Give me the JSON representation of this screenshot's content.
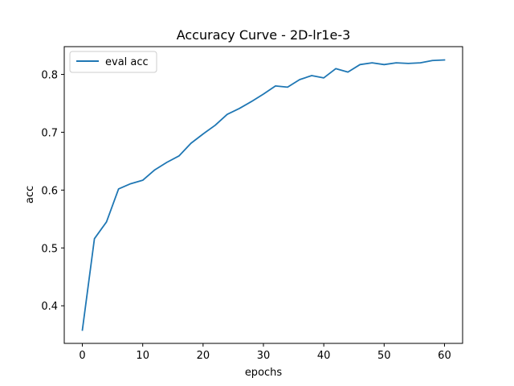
{
  "chart_data": {
    "type": "line",
    "title": "Accuracy Curve - 2D-lr1e-3",
    "xlabel": "epochs",
    "ylabel": "acc",
    "xlim": [
      -3,
      63
    ],
    "ylim": [
      0.335,
      0.848
    ],
    "xticks": [
      0,
      10,
      20,
      30,
      40,
      50,
      60
    ],
    "yticks": [
      0.4,
      0.5,
      0.6,
      0.7,
      0.8
    ],
    "grid": false,
    "legend": "top-left",
    "series": [
      {
        "name": "eval acc",
        "color": "#1f77b4",
        "x": [
          0,
          2,
          4,
          6,
          8,
          10,
          12,
          14,
          16,
          18,
          20,
          22,
          24,
          26,
          28,
          30,
          32,
          34,
          36,
          38,
          40,
          42,
          44,
          46,
          48,
          50,
          52,
          54,
          56,
          58,
          60
        ],
        "y": [
          0.358,
          0.516,
          0.545,
          0.602,
          0.611,
          0.617,
          0.635,
          0.648,
          0.659,
          0.681,
          0.697,
          0.712,
          0.731,
          0.741,
          0.753,
          0.766,
          0.78,
          0.778,
          0.791,
          0.798,
          0.794,
          0.81,
          0.804,
          0.817,
          0.82,
          0.817,
          0.82,
          0.819,
          0.82,
          0.824,
          0.825
        ]
      }
    ]
  }
}
